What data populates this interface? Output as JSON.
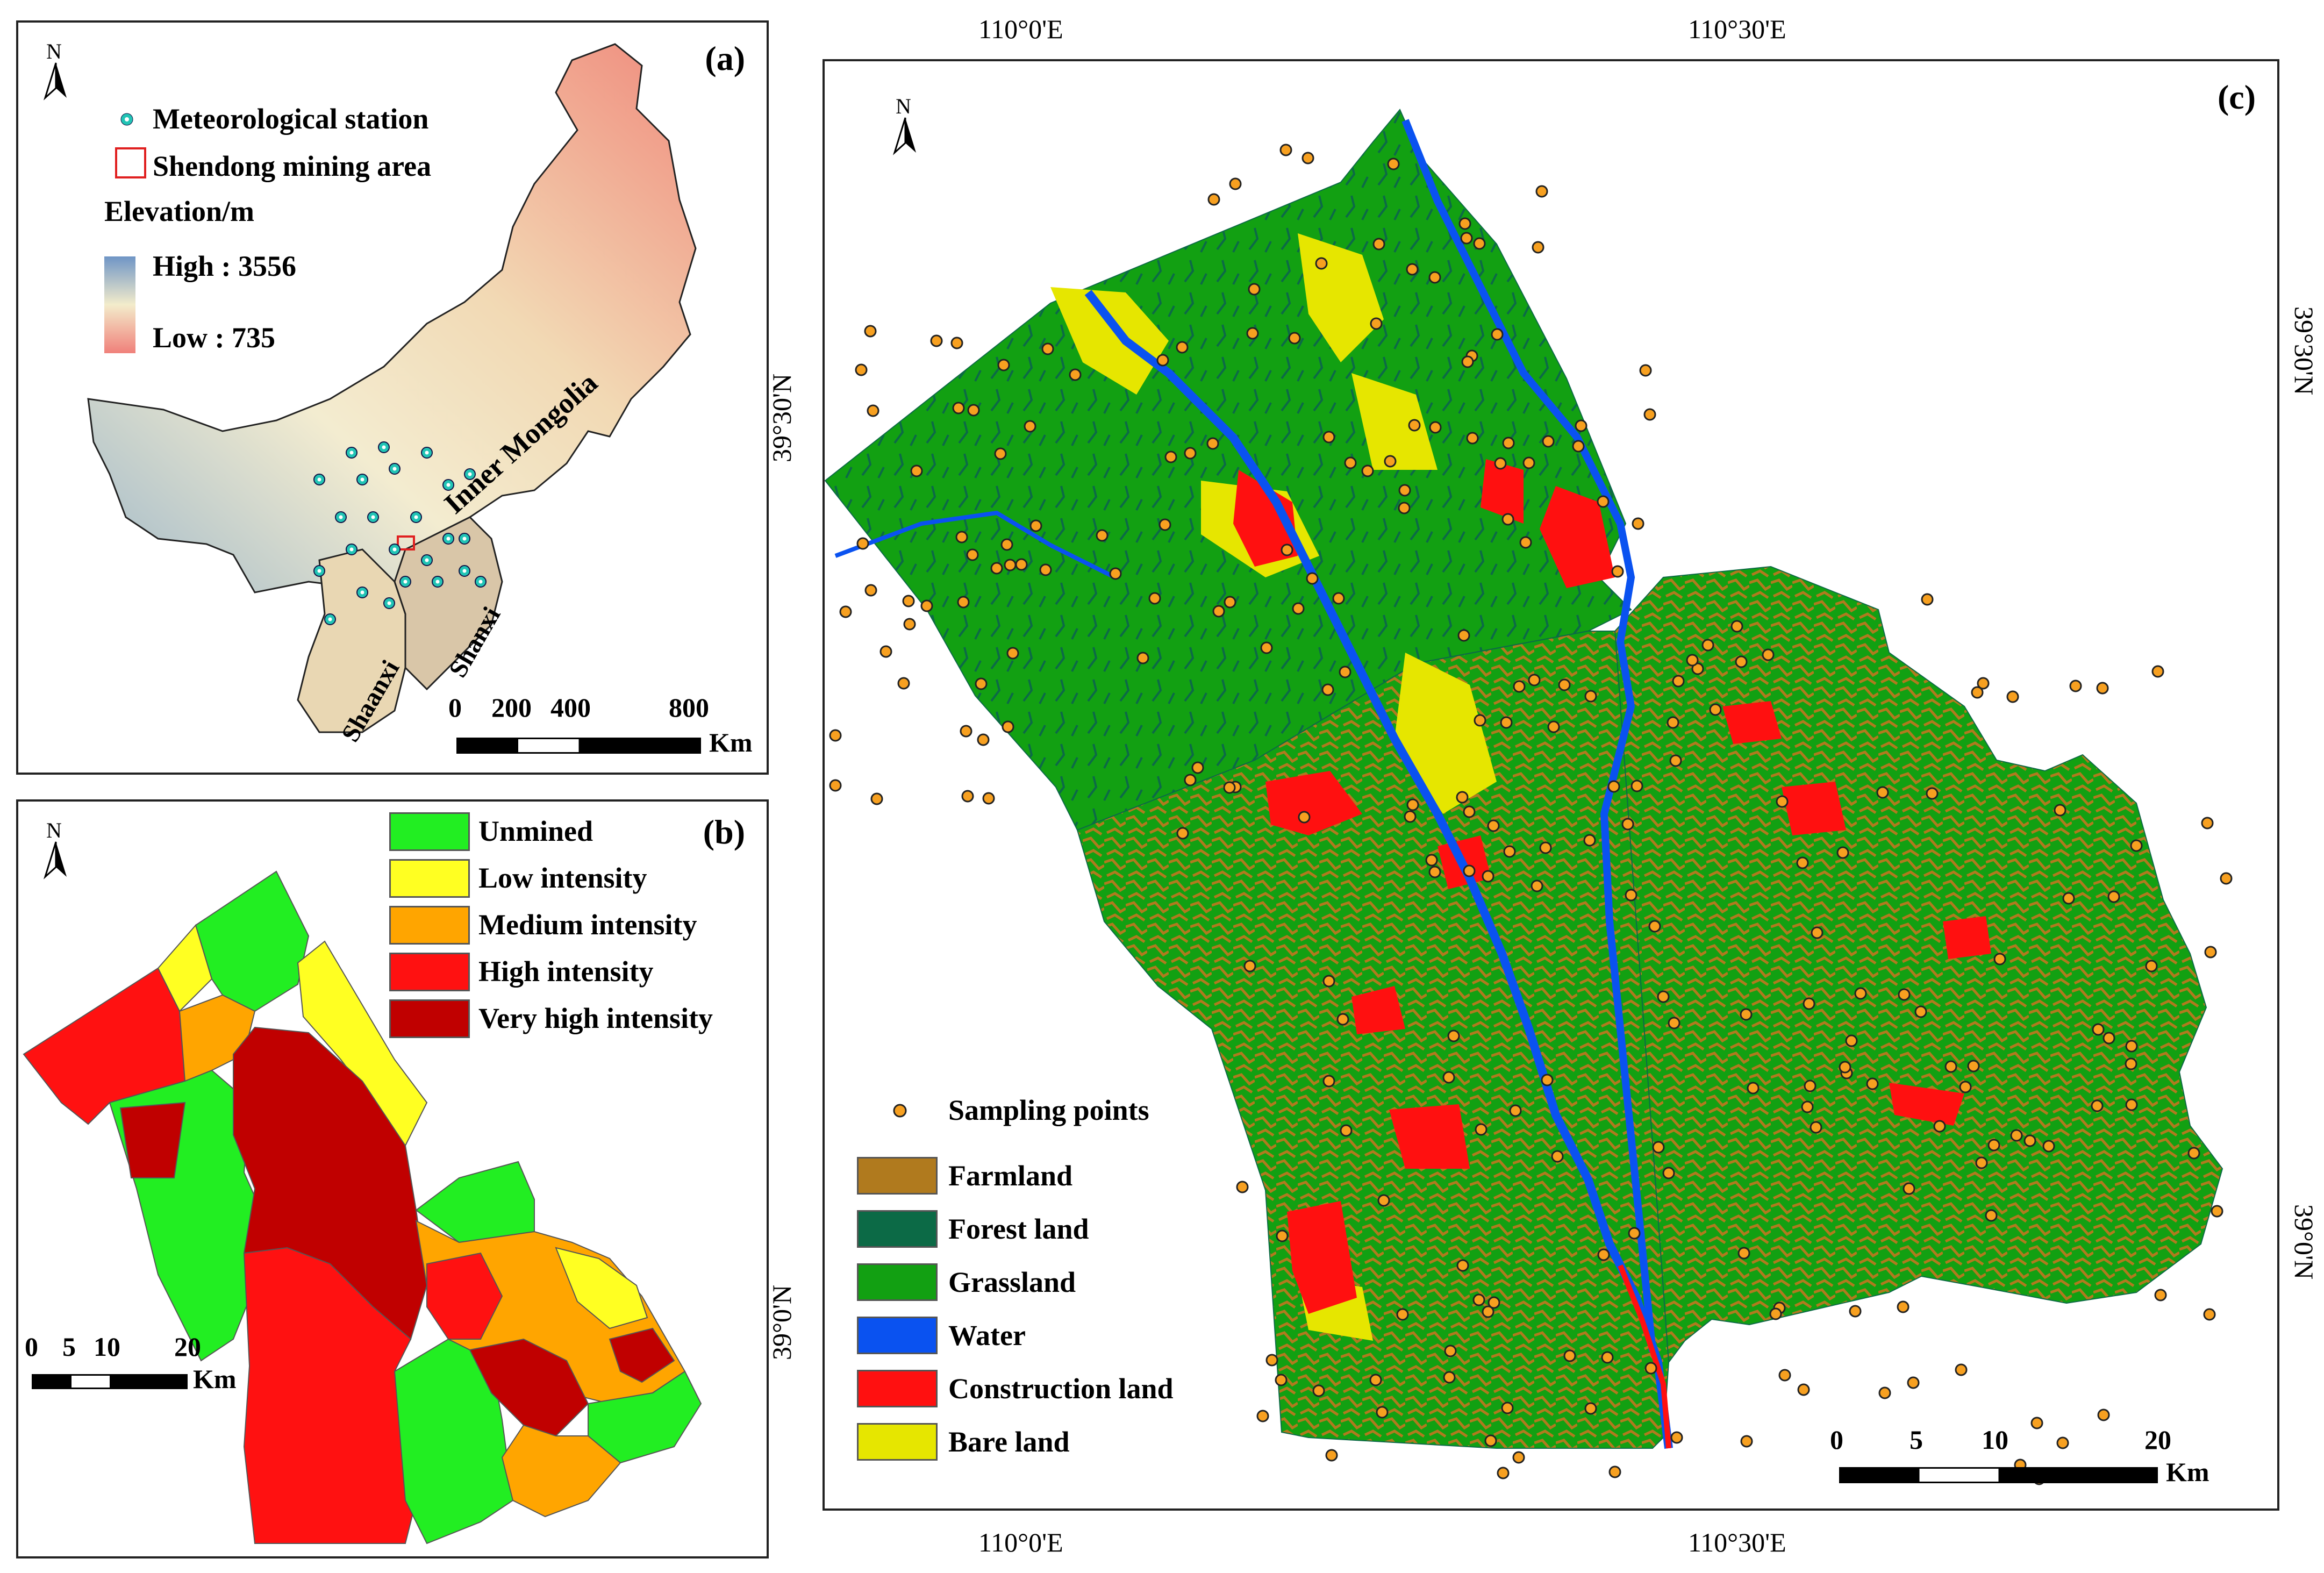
{
  "panel_a": {
    "tag": "(a)",
    "north": "N",
    "legend": {
      "station": "Meteorological station",
      "mining_area": "Shendong mining area",
      "elevation_title": "Elevation/m",
      "high": "High : 3556",
      "low": "Low : 735"
    },
    "regions": {
      "inner_mongolia": "Inner Mongolia",
      "shaanxi": "Shaanxi",
      "shanxi": "Shanxi"
    },
    "scalebar": {
      "ticks": [
        "0",
        "200",
        "400",
        "800"
      ],
      "unit": "Km"
    },
    "colors": {
      "station": "#22c4b5",
      "mining": "#e02020",
      "elev_high": "#6f95c6",
      "elev_mid": "#f3eccb",
      "elev_low": "#f0807a"
    }
  },
  "panel_b": {
    "tag": "(b)",
    "north": "N",
    "legend": [
      {
        "label": "Unmined",
        "color": "#22ee22"
      },
      {
        "label": "Low intensity",
        "color": "#ffff22"
      },
      {
        "label": "Medium intensity",
        "color": "#ffa500"
      },
      {
        "label": "High intensity",
        "color": "#ff1111"
      },
      {
        "label": "Very high intensity",
        "color": "#c00000"
      }
    ],
    "scalebar": {
      "ticks": [
        "0",
        "5",
        "10",
        "20"
      ],
      "unit": "Km"
    }
  },
  "panel_c": {
    "tag": "(c)",
    "north": "N",
    "legend_points": "Sampling points",
    "legend": [
      {
        "label": "Farmland",
        "color": "#b07a1e"
      },
      {
        "label": "Forest land",
        "color": "#0c6a46"
      },
      {
        "label": "Grassland",
        "color": "#12a012"
      },
      {
        "label": "Water",
        "color": "#0a52f0"
      },
      {
        "label": "Construction land",
        "color": "#ff1010"
      },
      {
        "label": "Bare land",
        "color": "#e6e600"
      }
    ],
    "point_color": "#f7a020",
    "scalebar": {
      "ticks": [
        "0",
        "5",
        "10",
        "20"
      ],
      "unit": "Km"
    },
    "coords": {
      "lon1": "110°0'E",
      "lon2": "110°30'E",
      "lat1": "39°30'N",
      "lat2": "39°0'N"
    }
  }
}
